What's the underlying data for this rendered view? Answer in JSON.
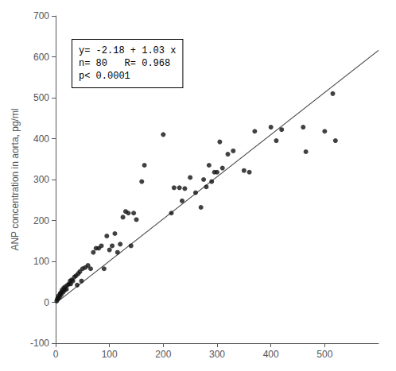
{
  "chart_data": {
    "type": "scatter",
    "ylabel": "ANP concentration in aorta, pg/ml",
    "annotation": "y= -2.18 + 1.03 x\nn= 80   R= 0.968\np< 0.0001",
    "series": [
      {
        "type": "scatter",
        "marker": "circle",
        "color": "#111111",
        "x": [
          2,
          3,
          5,
          5,
          7,
          8,
          9,
          10,
          11,
          12,
          14,
          15,
          17,
          18,
          20,
          22,
          25,
          27,
          28,
          30,
          32,
          35,
          38,
          40,
          42,
          45,
          48,
          50,
          55,
          60,
          65,
          70,
          75,
          80,
          85,
          90,
          95,
          100,
          105,
          110,
          115,
          120,
          125,
          130,
          135,
          140,
          145,
          150,
          160,
          165,
          200,
          215,
          220,
          230,
          235,
          240,
          250,
          260,
          270,
          275,
          280,
          285,
          290,
          295,
          300,
          305,
          310,
          320,
          330,
          350,
          360,
          370,
          400,
          410,
          420,
          460,
          465,
          500,
          515,
          520
        ],
        "values": [
          3,
          8,
          10,
          15,
          12,
          20,
          22,
          18,
          25,
          30,
          25,
          35,
          30,
          38,
          32,
          42,
          45,
          52,
          45,
          55,
          52,
          62,
          65,
          42,
          70,
          75,
          52,
          82,
          85,
          90,
          82,
          122,
          132,
          132,
          138,
          82,
          162,
          128,
          138,
          168,
          122,
          142,
          208,
          222,
          218,
          138,
          218,
          202,
          295,
          335,
          410,
          218,
          280,
          280,
          248,
          278,
          305,
          268,
          232,
          300,
          282,
          335,
          295,
          318,
          318,
          392,
          328,
          362,
          370,
          322,
          318,
          418,
          428,
          395,
          422,
          428,
          368,
          418,
          510,
          395
        ]
      },
      {
        "type": "line",
        "line_style": "solid",
        "color": "#444444",
        "x": [
          0,
          600
        ],
        "values": [
          -2.18,
          615.82
        ]
      }
    ],
    "xlim": [
      0,
      600
    ],
    "ylim": [
      -100,
      700
    ],
    "xticks": [
      0,
      100,
      200,
      300,
      400,
      500
    ],
    "yticks": [
      -100,
      0,
      100,
      200,
      300,
      400,
      500,
      600,
      700
    ],
    "grid": false
  }
}
